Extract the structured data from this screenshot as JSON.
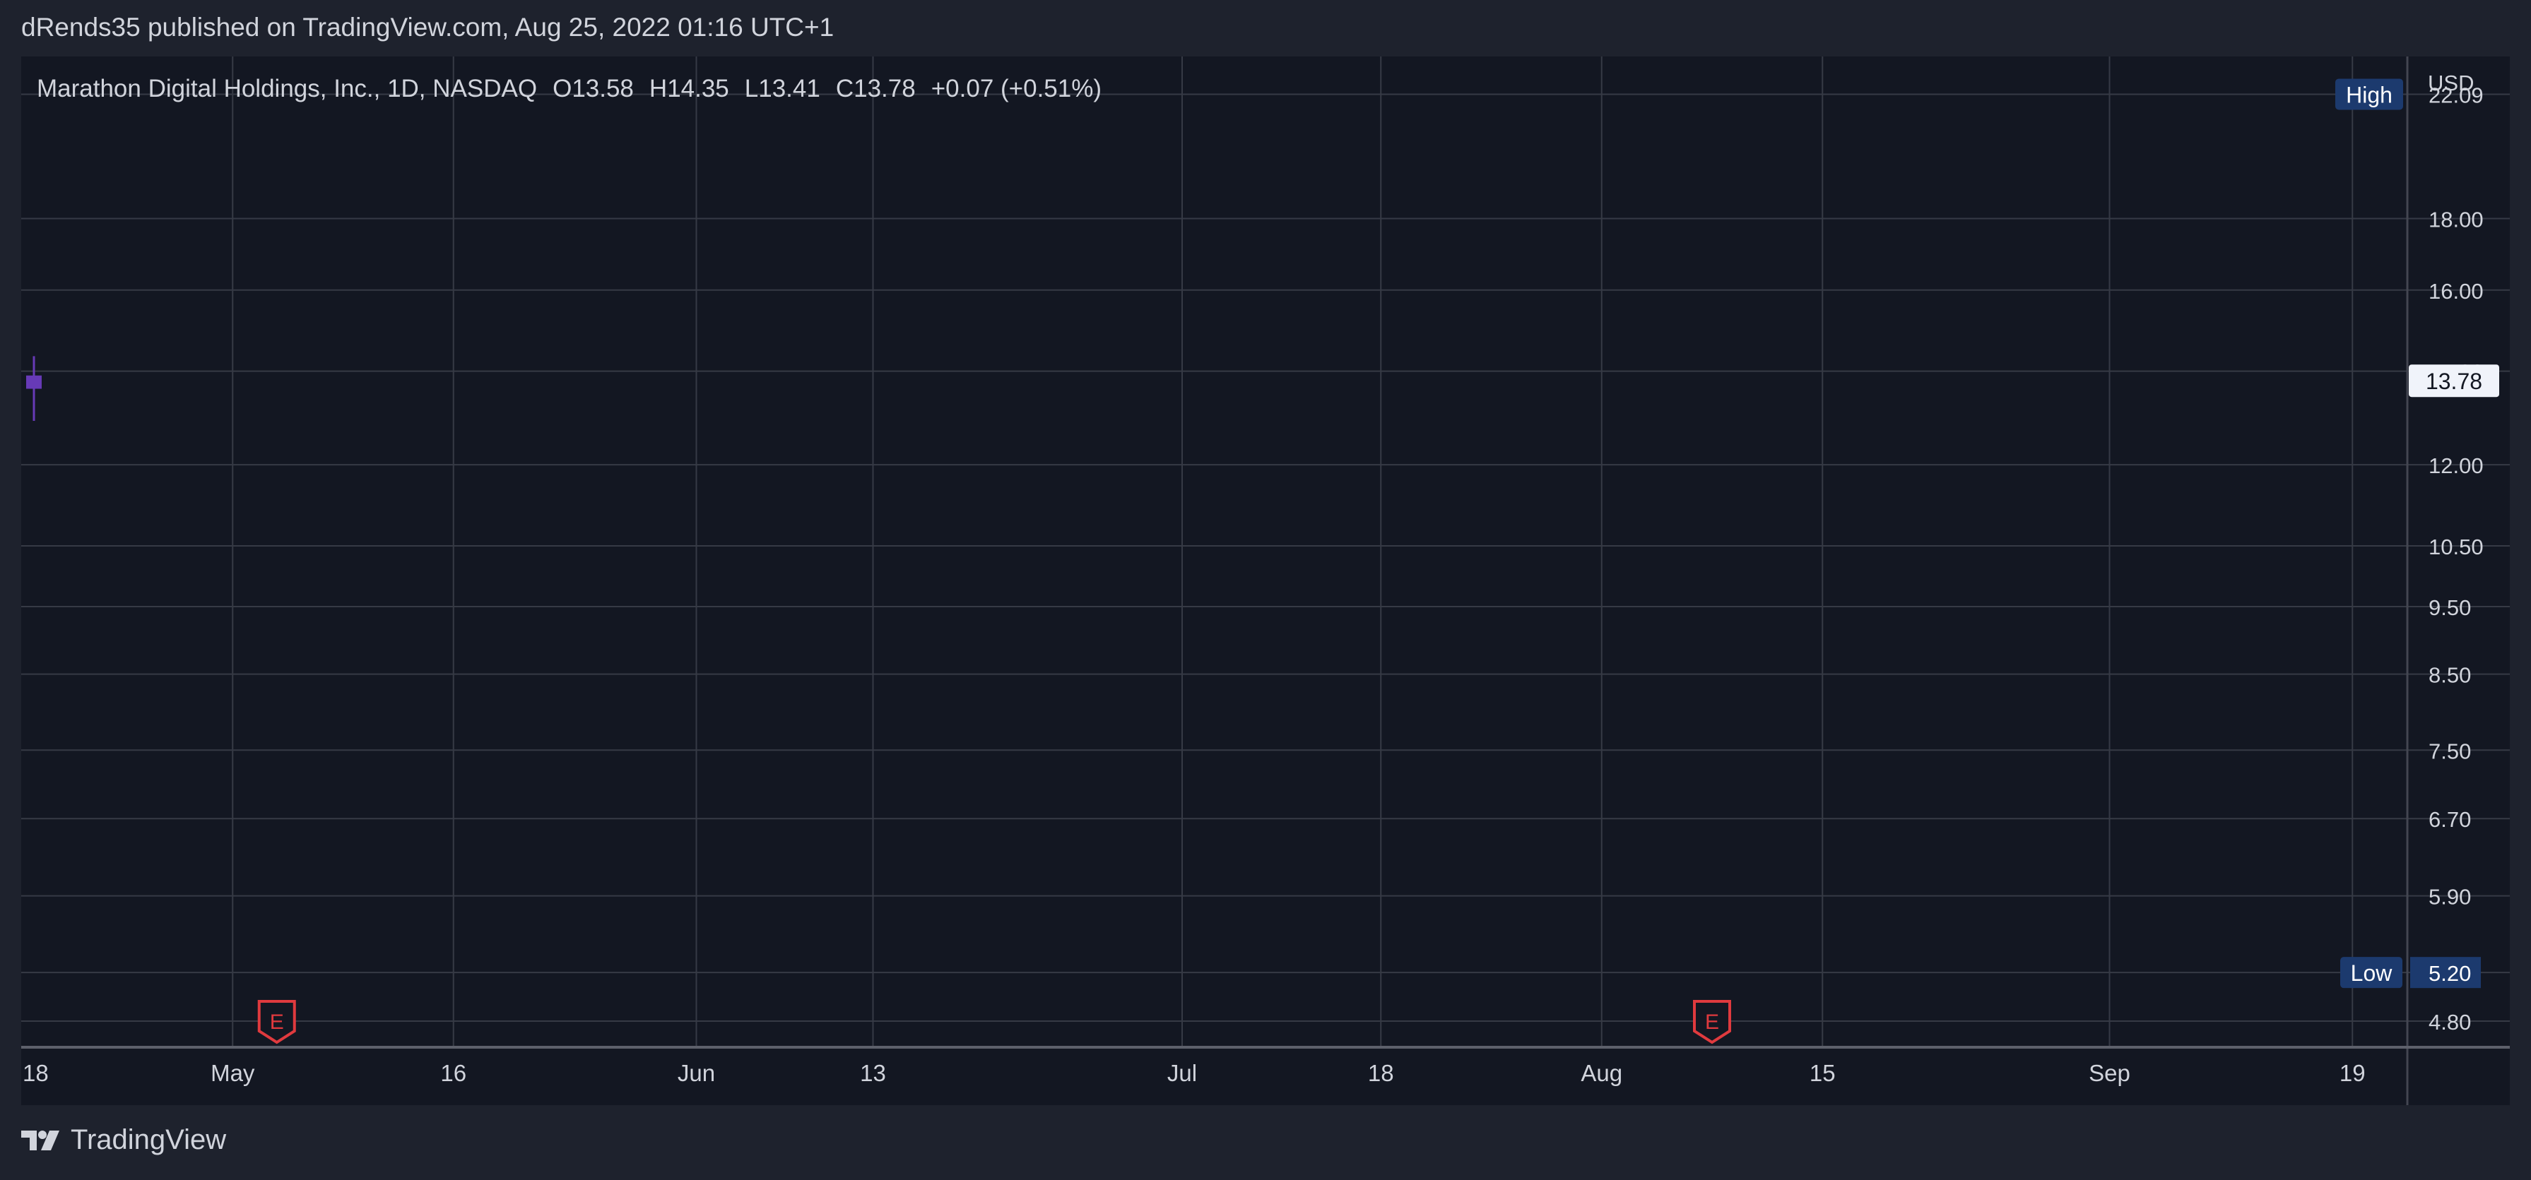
{
  "header": {
    "published_text": "dRends35 published on TradingView.com, Aug 25, 2022 01:16 UTC+1"
  },
  "footer": {
    "brand": "TradingView"
  },
  "colors": {
    "background": "#1e222d",
    "panel": "#131722",
    "grid": "#363a45",
    "up": "#d1d4dc",
    "down": "#673ab7",
    "earnings": "#e03a3e",
    "badge": "#1c3a6e",
    "text": "#d1d4dc"
  },
  "chart_data": {
    "type": "candlestick",
    "legend": {
      "symbol": "Marathon Digital Holdings, Inc., 1D, NASDAQ",
      "o_label": "O",
      "o": "13.58",
      "h_label": "H",
      "h": "14.35",
      "l_label": "L",
      "l": "13.41",
      "c_label": "C",
      "c": "13.78",
      "change": "+0.07 (+0.51%)"
    },
    "currency": "USD",
    "y_scale": "log",
    "ylim": [
      4.75,
      23.1
    ],
    "y_ticks": [
      "22.09",
      "18.00",
      "16.00",
      "14.00",
      "12.00",
      "10.50",
      "9.50",
      "8.50",
      "7.50",
      "6.70",
      "5.90",
      "5.20",
      "4.80"
    ],
    "x_ticks": [
      {
        "label": "18",
        "index": -1
      },
      {
        "label": "May",
        "index": 9
      },
      {
        "label": "16",
        "index": 19
      },
      {
        "label": "Jun",
        "index": 30
      },
      {
        "label": "13",
        "index": 38
      },
      {
        "label": "Jul",
        "index": 52
      },
      {
        "label": "18",
        "index": 61
      },
      {
        "label": "Aug",
        "index": 71
      },
      {
        "label": "15",
        "index": 81
      },
      {
        "label": "Sep",
        "index": 94
      },
      {
        "label": "19",
        "index": 105
      }
    ],
    "visible_bars": 112,
    "price_label": "13.78",
    "high_marker": {
      "label": "High",
      "value": "22.09"
    },
    "low_marker": {
      "label": "Low",
      "value": "5.20"
    },
    "earnings_label": "E",
    "earnings": [
      {
        "index": 11
      },
      {
        "index": 76
      }
    ],
    "candles": [
      {
        "o": 13.9,
        "h": 14.35,
        "l": 12.9,
        "c": 13.6
      }
    ]
  }
}
